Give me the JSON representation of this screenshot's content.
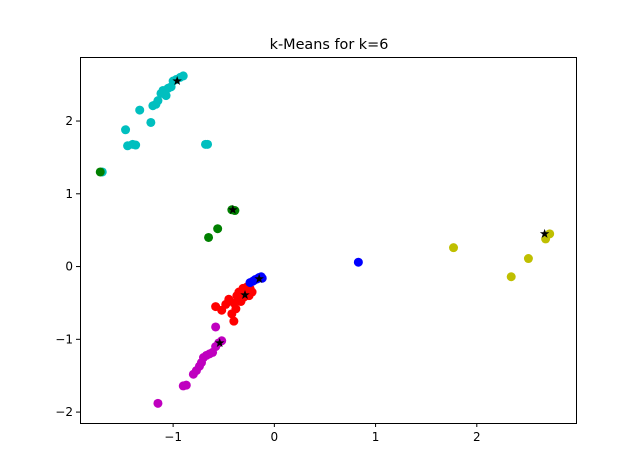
{
  "chart_data": {
    "type": "scatter",
    "title": "k-Means for k=6",
    "xlabel": "",
    "ylabel": "",
    "xlim": [
      -1.92,
      2.98
    ],
    "ylim": [
      -2.15,
      2.88
    ],
    "grid": false,
    "legend": "none",
    "x_ticks": [
      {
        "value": -1,
        "label": "−1"
      },
      {
        "value": 0,
        "label": "0"
      },
      {
        "value": 1,
        "label": "1"
      },
      {
        "value": 2,
        "label": "2"
      }
    ],
    "y_ticks": [
      {
        "value": -2,
        "label": "−2"
      },
      {
        "value": -1,
        "label": "−1"
      },
      {
        "value": 0,
        "label": "0"
      },
      {
        "value": 1,
        "label": "1"
      },
      {
        "value": 2,
        "label": "2"
      }
    ],
    "series": [
      {
        "name": "cluster-cyan",
        "color": "#00bfbf",
        "points": [
          [
            -1.7,
            1.3
          ],
          [
            -1.47,
            1.88
          ],
          [
            -1.45,
            1.66
          ],
          [
            -1.4,
            1.68
          ],
          [
            -1.37,
            1.67
          ],
          [
            -1.33,
            2.15
          ],
          [
            -1.22,
            1.98
          ],
          [
            -1.2,
            2.21
          ],
          [
            -1.17,
            2.23
          ],
          [
            -1.15,
            2.28
          ],
          [
            -1.12,
            2.38
          ],
          [
            -1.1,
            2.42
          ],
          [
            -1.07,
            2.35
          ],
          [
            -1.05,
            2.45
          ],
          [
            -1.02,
            2.47
          ],
          [
            -1.0,
            2.55
          ],
          [
            -0.97,
            2.57
          ],
          [
            -0.93,
            2.6
          ],
          [
            -0.9,
            2.62
          ],
          [
            -0.68,
            1.68
          ],
          [
            -0.66,
            1.68
          ]
        ]
      },
      {
        "name": "cluster-green",
        "color": "#008000",
        "points": [
          [
            -1.72,
            1.3
          ],
          [
            -0.65,
            0.4
          ],
          [
            -0.56,
            0.52
          ],
          [
            -0.42,
            0.78
          ],
          [
            -0.39,
            0.77
          ]
        ]
      },
      {
        "name": "cluster-red",
        "color": "#ff0000",
        "points": [
          [
            -0.58,
            -0.55
          ],
          [
            -0.52,
            -0.6
          ],
          [
            -0.48,
            -0.52
          ],
          [
            -0.45,
            -0.45
          ],
          [
            -0.42,
            -0.65
          ],
          [
            -0.4,
            -0.75
          ],
          [
            -0.4,
            -0.5
          ],
          [
            -0.38,
            -0.58
          ],
          [
            -0.37,
            -0.4
          ],
          [
            -0.35,
            -0.35
          ],
          [
            -0.33,
            -0.48
          ],
          [
            -0.31,
            -0.3
          ],
          [
            -0.3,
            -0.42
          ],
          [
            -0.28,
            -0.38
          ],
          [
            -0.27,
            -0.28
          ],
          [
            -0.25,
            -0.4
          ],
          [
            -0.24,
            -0.3
          ],
          [
            -0.22,
            -0.35
          ]
        ]
      },
      {
        "name": "cluster-blue",
        "color": "#0000ff",
        "points": [
          [
            -0.24,
            -0.22
          ],
          [
            -0.21,
            -0.2
          ],
          [
            -0.19,
            -0.18
          ],
          [
            -0.17,
            -0.17
          ],
          [
            -0.15,
            -0.15
          ],
          [
            -0.13,
            -0.14
          ],
          [
            -0.12,
            -0.16
          ],
          [
            0.83,
            0.06
          ]
        ]
      },
      {
        "name": "cluster-magenta",
        "color": "#bf00bf",
        "points": [
          [
            -1.15,
            -1.88
          ],
          [
            -0.9,
            -1.64
          ],
          [
            -0.87,
            -1.63
          ],
          [
            -0.8,
            -1.48
          ],
          [
            -0.77,
            -1.43
          ],
          [
            -0.74,
            -1.37
          ],
          [
            -0.72,
            -1.32
          ],
          [
            -0.7,
            -1.25
          ],
          [
            -0.67,
            -1.22
          ],
          [
            -0.64,
            -1.2
          ],
          [
            -0.61,
            -1.18
          ],
          [
            -0.58,
            -1.1
          ],
          [
            -0.55,
            -1.05
          ],
          [
            -0.52,
            -1.02
          ],
          [
            -0.58,
            -0.83
          ]
        ]
      },
      {
        "name": "cluster-yellow",
        "color": "#bfbf00",
        "points": [
          [
            1.77,
            0.26
          ],
          [
            2.34,
            -0.14
          ],
          [
            2.51,
            0.11
          ],
          [
            2.68,
            0.38
          ],
          [
            2.72,
            0.45
          ]
        ]
      }
    ],
    "centroids": {
      "name": "centroids",
      "color": "#000000",
      "marker": "star",
      "points": [
        [
          -0.96,
          2.55
        ],
        [
          -0.41,
          0.78
        ],
        [
          -0.29,
          -0.39
        ],
        [
          -0.15,
          -0.17
        ],
        [
          -0.54,
          -1.05
        ],
        [
          2.67,
          0.45
        ]
      ]
    }
  }
}
